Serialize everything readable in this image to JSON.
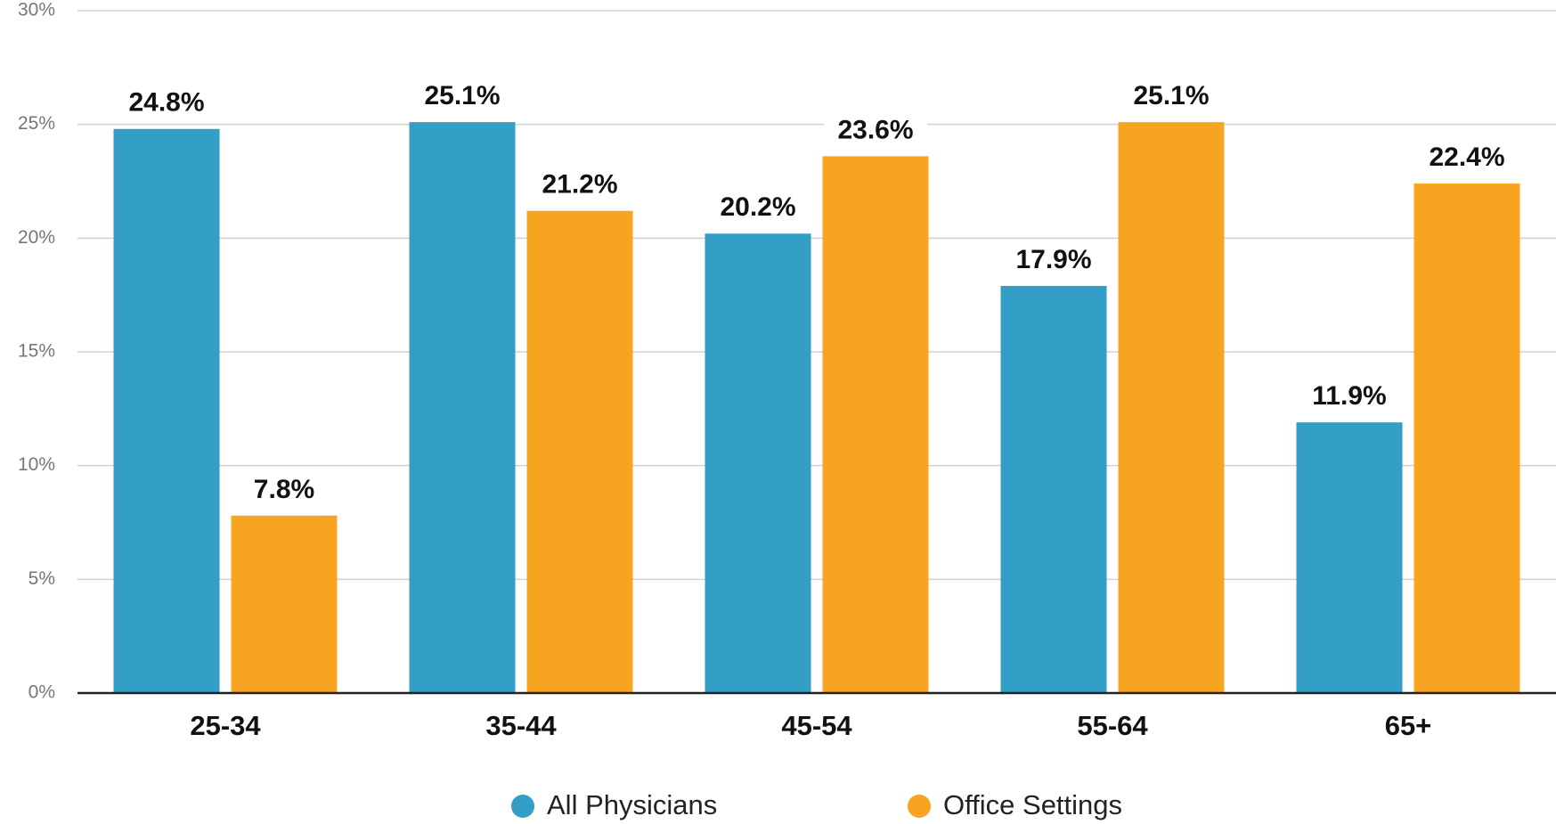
{
  "chart_data": {
    "type": "bar",
    "categories": [
      "25-34",
      "35-44",
      "45-54",
      "55-64",
      "65+"
    ],
    "series": [
      {
        "name": "All Physicians",
        "color": "#339ec6",
        "values": [
          24.8,
          25.1,
          20.2,
          17.9,
          11.9
        ],
        "value_labels": [
          "24.8%",
          "25.1%",
          "20.2%",
          "17.9%",
          "11.9%"
        ]
      },
      {
        "name": "Office Settings",
        "color": "#f7a521",
        "values": [
          7.8,
          21.2,
          23.6,
          25.1,
          22.4
        ],
        "value_labels": [
          "7.8%",
          "21.2%",
          "23.6%",
          "25.1%",
          "22.4%"
        ]
      }
    ],
    "ylim": [
      0,
      30
    ],
    "yticks": [
      {
        "value": 0,
        "label": "0%"
      },
      {
        "value": 5,
        "label": "5%"
      },
      {
        "value": 10,
        "label": "10%"
      },
      {
        "value": 15,
        "label": "15%"
      },
      {
        "value": 20,
        "label": "20%"
      },
      {
        "value": 25,
        "label": "25%"
      },
      {
        "value": 30,
        "label": "30%"
      }
    ],
    "grid": true,
    "legend": "bottom"
  }
}
